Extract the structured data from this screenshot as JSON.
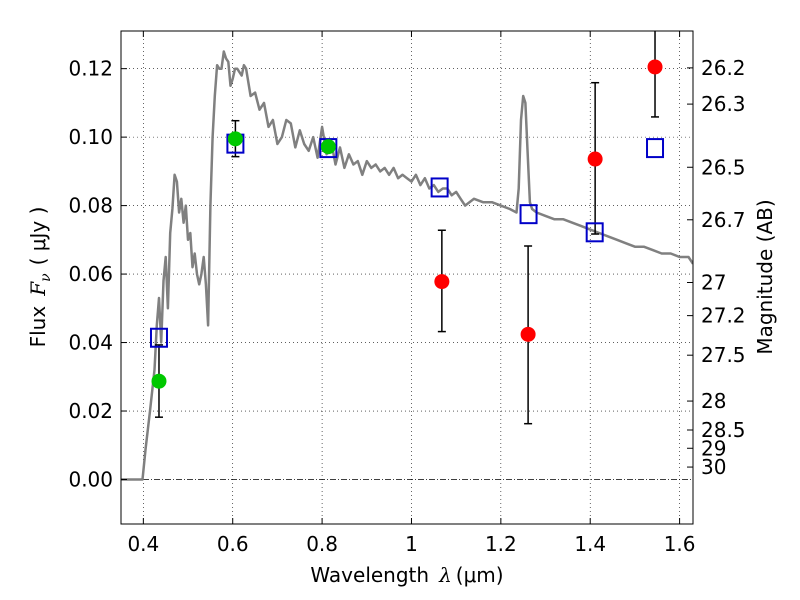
{
  "chart_data": {
    "type": "scatter",
    "xlabel": {
      "text": "Wavelength",
      "symbol": "λ",
      "unit": "(μm)"
    },
    "ylabel": {
      "text": "Flux",
      "symbol": "F",
      "sub": "ν",
      "unit": "( μJy )"
    },
    "ylabel_right": "Magnitude (AB)",
    "xlim": [
      0.35,
      1.63
    ],
    "ylim": [
      -0.013,
      0.131
    ],
    "grid": true,
    "x_ticks": [
      {
        "v": 0.4,
        "label": "0.4"
      },
      {
        "v": 0.6,
        "label": "0.6"
      },
      {
        "v": 0.8,
        "label": "0.8"
      },
      {
        "v": 1.0,
        "label": "1"
      },
      {
        "v": 1.2,
        "label": "1.2"
      },
      {
        "v": 1.4,
        "label": "1.4"
      },
      {
        "v": 1.6,
        "label": "1.6"
      }
    ],
    "y_ticks": [
      {
        "v": 0.0,
        "label": "0.00"
      },
      {
        "v": 0.02,
        "label": "0.02"
      },
      {
        "v": 0.04,
        "label": "0.04"
      },
      {
        "v": 0.06,
        "label": "0.06"
      },
      {
        "v": 0.08,
        "label": "0.08"
      },
      {
        "v": 0.1,
        "label": "0.10"
      },
      {
        "v": 0.12,
        "label": "0.12"
      }
    ],
    "mag_ticks": [
      {
        "mag": 26.2,
        "label": "26.2"
      },
      {
        "mag": 26.3,
        "label": "26.3"
      },
      {
        "mag": 26.5,
        "label": "26.5"
      },
      {
        "mag": 26.7,
        "label": "26.7"
      },
      {
        "mag": 27,
        "label": "27"
      },
      {
        "mag": 27.2,
        "label": "27.2"
      },
      {
        "mag": 27.5,
        "label": "27.5"
      },
      {
        "mag": 28,
        "label": "28"
      },
      {
        "mag": 28.5,
        "label": "28.5"
      },
      {
        "mag": 29,
        "label": "29"
      },
      {
        "mag": 30,
        "label": "30"
      }
    ],
    "series": [
      {
        "type": "line",
        "color": "#808080",
        "x": [
          0.35,
          0.398,
          0.405,
          0.415,
          0.425,
          0.43,
          0.435,
          0.44,
          0.445,
          0.45,
          0.455,
          0.46,
          0.465,
          0.47,
          0.475,
          0.48,
          0.485,
          0.49,
          0.495,
          0.5,
          0.505,
          0.51,
          0.515,
          0.52,
          0.525,
          0.53,
          0.535,
          0.54,
          0.545,
          0.55,
          0.555,
          0.56,
          0.565,
          0.57,
          0.575,
          0.58,
          0.585,
          0.59,
          0.595,
          0.6,
          0.605,
          0.61,
          0.615,
          0.62,
          0.625,
          0.63,
          0.64,
          0.65,
          0.66,
          0.67,
          0.68,
          0.69,
          0.7,
          0.71,
          0.72,
          0.73,
          0.74,
          0.75,
          0.76,
          0.77,
          0.78,
          0.79,
          0.8,
          0.81,
          0.82,
          0.83,
          0.84,
          0.85,
          0.86,
          0.87,
          0.88,
          0.89,
          0.9,
          0.91,
          0.92,
          0.93,
          0.94,
          0.95,
          0.96,
          0.97,
          0.98,
          0.99,
          1.0,
          1.01,
          1.02,
          1.03,
          1.04,
          1.05,
          1.06,
          1.07,
          1.08,
          1.09,
          1.1,
          1.11,
          1.12,
          1.14,
          1.16,
          1.18,
          1.2,
          1.22,
          1.235,
          1.24,
          1.245,
          1.25,
          1.255,
          1.26,
          1.265,
          1.27,
          1.28,
          1.3,
          1.32,
          1.34,
          1.36,
          1.38,
          1.4,
          1.42,
          1.44,
          1.46,
          1.48,
          1.5,
          1.52,
          1.54,
          1.56,
          1.58,
          1.6,
          1.62,
          1.63
        ],
        "y": [
          0.0,
          0.0,
          0.009,
          0.02,
          0.032,
          0.045,
          0.053,
          0.04,
          0.058,
          0.065,
          0.05,
          0.072,
          0.079,
          0.089,
          0.087,
          0.078,
          0.082,
          0.075,
          0.08,
          0.07,
          0.072,
          0.062,
          0.066,
          0.06,
          0.057,
          0.06,
          0.065,
          0.057,
          0.045,
          0.08,
          0.1,
          0.112,
          0.121,
          0.12,
          0.12,
          0.125,
          0.123,
          0.122,
          0.115,
          0.117,
          0.12,
          0.12,
          0.119,
          0.118,
          0.121,
          0.12,
          0.112,
          0.113,
          0.108,
          0.11,
          0.103,
          0.105,
          0.098,
          0.1,
          0.105,
          0.104,
          0.097,
          0.102,
          0.098,
          0.096,
          0.1,
          0.094,
          0.103,
          0.095,
          0.099,
          0.092,
          0.097,
          0.091,
          0.095,
          0.092,
          0.093,
          0.089,
          0.093,
          0.091,
          0.092,
          0.09,
          0.091,
          0.089,
          0.091,
          0.088,
          0.089,
          0.088,
          0.087,
          0.089,
          0.086,
          0.088,
          0.085,
          0.086,
          0.084,
          0.085,
          0.085,
          0.083,
          0.084,
          0.082,
          0.08,
          0.082,
          0.081,
          0.081,
          0.08,
          0.079,
          0.078,
          0.085,
          0.105,
          0.112,
          0.11,
          0.095,
          0.081,
          0.079,
          0.078,
          0.077,
          0.076,
          0.076,
          0.075,
          0.074,
          0.073,
          0.072,
          0.071,
          0.07,
          0.069,
          0.068,
          0.068,
          0.067,
          0.066,
          0.066,
          0.065,
          0.065,
          0.063
        ]
      },
      {
        "type": "scatter",
        "marker": "circle",
        "color": "#00c800",
        "points": [
          {
            "x": 0.435,
            "y": 0.0287,
            "lo": 0.0182,
            "hi": 0.0393
          },
          {
            "x": 0.606,
            "y": 0.0995,
            "lo": 0.0943,
            "hi": 0.1048
          },
          {
            "x": 0.814,
            "y": 0.0972,
            "lo": 0.0962,
            "hi": 0.0982
          }
        ]
      },
      {
        "type": "scatter",
        "marker": "circle",
        "color": "#ff0000",
        "points": [
          {
            "x": 1.068,
            "y": 0.0578,
            "lo": 0.0432,
            "hi": 0.0728
          },
          {
            "x": 1.261,
            "y": 0.0424,
            "lo": 0.0163,
            "hi": 0.0682
          },
          {
            "x": 1.411,
            "y": 0.0936,
            "lo": 0.0717,
            "hi": 0.1159
          },
          {
            "x": 1.545,
            "y": 0.1205,
            "lo": 0.1059,
            "hi": 0.131
          }
        ]
      },
      {
        "type": "scatter",
        "marker": "open-square",
        "color": "#0000c8",
        "points": [
          {
            "x": 0.435,
            "y": 0.0414
          },
          {
            "x": 0.606,
            "y": 0.0981
          },
          {
            "x": 0.814,
            "y": 0.0968
          },
          {
            "x": 1.063,
            "y": 0.0853
          },
          {
            "x": 1.262,
            "y": 0.0775
          },
          {
            "x": 1.41,
            "y": 0.0722
          },
          {
            "x": 1.545,
            "y": 0.0968
          }
        ]
      }
    ]
  }
}
